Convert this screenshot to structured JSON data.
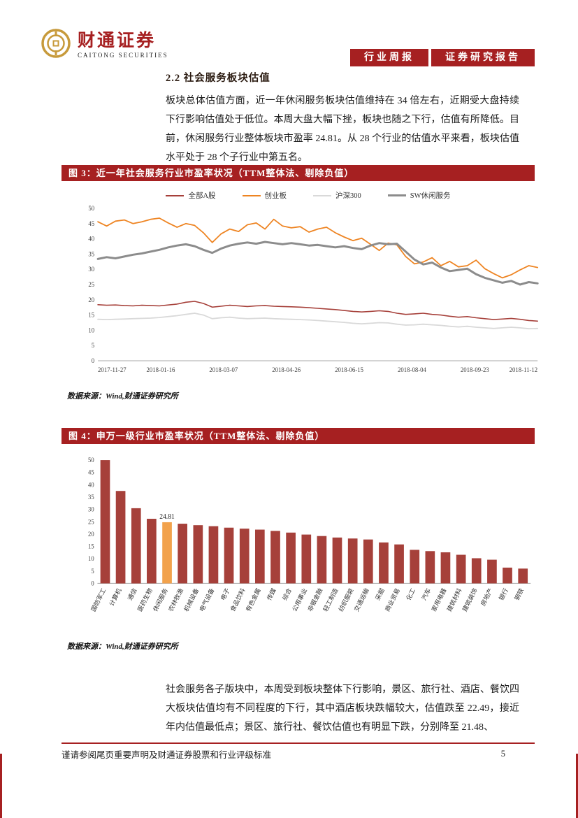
{
  "page": {
    "header": {
      "brand_cn": "财通证券",
      "brand_en": "CAITONG SECURITIES",
      "badge_left": "行业周报",
      "badge_right": "证券研究报告"
    },
    "section": {
      "title": "2.2 社会服务板块估值"
    },
    "paragraphs": {
      "p1": "板块总体估值方面，近一年休闲服务板块估值维持在 34 倍左右，近期受大盘持续下行影响估值处于低位。本周大盘大幅下挫，板块也随之下行，估值有所降低。目前，休闲服务行业整体板块市盈率 24.81。从 28 个行业的估值水平来看，板块估值水平处于 28 个子行业中第五名。",
      "p2": "社会服务各子版块中，本周受到板块整体下行影响，景区、旅行社、酒店、餐饮四大板块估值均有不同程度的下行，其中酒店板块跌幅较大，估值跌至 22.49，接近年内估值最低点；景区、旅行社、餐饮估值也有明显下跌，分别降至 21.48、"
    },
    "figure3": {
      "banner": "图 3：近一年社会服务行业市盈率状况（TTM整体法、剔除负值）",
      "source": "数据来源：Wind,财通证券研究所"
    },
    "figure4": {
      "banner": "图 4：申万一级行业市盈率状况（TTM整体法、剔除负值）",
      "source": "数据来源：Wind,财通证券研究所"
    },
    "footer": {
      "disclaimer": "谨请参阅尾页重要声明及财通证券股票和行业评级标准",
      "page_number": "5"
    }
  },
  "colors": {
    "accent_red": "#A62021",
    "gold": "#C79A3B",
    "bar_maroon": "#A6403A",
    "highlight_orange": "#F2A24C"
  },
  "chart_data": [
    {
      "type": "line",
      "title": "近一年社会服务行业市盈率状况（TTM整体法、剔除负值）",
      "ylim": [
        0,
        50
      ],
      "ytick_step": 5,
      "grid": false,
      "legend_position": "top",
      "x_tick_labels": [
        "2017-11-27",
        "2018-01-16",
        "2018-03-07",
        "2018-04-26",
        "2018-06-15",
        "2018-08-04",
        "2018-09-23",
        "2018-11-12"
      ],
      "series": [
        {
          "name": "全部A股",
          "color": "#A6403A",
          "width": 1.6,
          "values": [
            18.4,
            18.2,
            18.3,
            18.1,
            18.0,
            18.2,
            18.1,
            18.0,
            18.3,
            18.6,
            19.2,
            19.5,
            18.8,
            17.6,
            17.9,
            18.2,
            18.0,
            17.8,
            18.0,
            18.1,
            17.9,
            17.8,
            17.7,
            17.6,
            17.4,
            17.2,
            17.0,
            16.8,
            16.5,
            16.2,
            16.0,
            16.2,
            16.4,
            16.2,
            15.6,
            15.2,
            15.4,
            15.6,
            15.2,
            15.0,
            14.6,
            14.3,
            14.5,
            14.1,
            13.8,
            13.5,
            13.7,
            13.9,
            13.6,
            13.2,
            13.0
          ]
        },
        {
          "name": "创业板",
          "color": "#EE8422",
          "width": 1.8,
          "values": [
            45.6,
            44.2,
            45.8,
            46.2,
            45.0,
            45.6,
            46.4,
            46.8,
            45.2,
            43.8,
            45.0,
            44.4,
            42.0,
            38.8,
            41.6,
            43.2,
            42.4,
            44.6,
            45.2,
            43.2,
            46.4,
            44.2,
            43.6,
            44.0,
            42.2,
            43.2,
            43.8,
            42.0,
            40.6,
            39.4,
            40.2,
            38.2,
            36.2,
            38.6,
            38.0,
            34.2,
            31.8,
            32.4,
            33.8,
            31.2,
            32.6,
            30.8,
            31.2,
            33.0,
            30.2,
            28.6,
            27.2,
            28.2,
            29.8,
            31.2,
            30.6
          ]
        },
        {
          "name": "沪深300",
          "color": "#D9D9D9",
          "width": 1.8,
          "values": [
            13.6,
            13.5,
            13.6,
            13.7,
            13.8,
            13.9,
            14.0,
            14.2,
            14.5,
            14.8,
            15.2,
            15.6,
            15.0,
            13.8,
            14.1,
            14.3,
            14.0,
            13.8,
            13.9,
            14.0,
            13.8,
            13.7,
            13.6,
            13.5,
            13.4,
            13.2,
            13.0,
            12.8,
            12.6,
            12.3,
            12.1,
            12.3,
            12.5,
            12.4,
            12.0,
            11.7,
            11.8,
            12.0,
            11.8,
            11.6,
            11.3,
            11.1,
            11.3,
            11.0,
            10.8,
            10.6,
            10.8,
            11.0,
            10.8,
            10.5,
            10.6
          ]
        },
        {
          "name": "SW休闲服务",
          "color": "#8C8C8C",
          "width": 3,
          "values": [
            33.4,
            34.0,
            33.6,
            34.2,
            34.8,
            35.2,
            35.8,
            36.4,
            37.2,
            37.8,
            38.2,
            37.6,
            36.4,
            35.4,
            36.8,
            37.8,
            38.4,
            38.8,
            38.4,
            39.0,
            38.6,
            38.2,
            38.6,
            38.2,
            37.8,
            38.0,
            37.6,
            37.2,
            37.6,
            37.0,
            36.6,
            37.8,
            38.6,
            38.2,
            38.4,
            35.8,
            33.2,
            31.6,
            32.2,
            30.6,
            29.4,
            29.8,
            30.2,
            28.4,
            27.2,
            26.4,
            25.6,
            26.2,
            25.0,
            25.8,
            25.4
          ]
        }
      ]
    },
    {
      "type": "bar",
      "title": "申万一级行业市盈率状况（TTM整体法、剔除负值）",
      "ylim": [
        0,
        50
      ],
      "ytick_step": 5,
      "grid": false,
      "bar_color": "#A6403A",
      "highlight": {
        "index": 4,
        "color": "#F2A24C",
        "label": "24.81"
      },
      "categories": [
        "国防军工",
        "计算机",
        "通信",
        "医药生物",
        "休闲服务",
        "农林牧渔",
        "机械设备",
        "电气设备",
        "电子",
        "食品饮料",
        "有色金属",
        "传媒",
        "综合",
        "公用事业",
        "非银金融",
        "轻工制造",
        "纺织服装",
        "交通运输",
        "采掘",
        "商业贸易",
        "化工",
        "汽车",
        "家用电器",
        "建筑材料",
        "建筑装饰",
        "房地产",
        "银行",
        "钢铁"
      ],
      "values": [
        50,
        37.5,
        30.5,
        26.2,
        24.81,
        24.2,
        23.6,
        23.2,
        22.6,
        22.2,
        21.8,
        21.3,
        20.6,
        19.8,
        19.2,
        18.6,
        18.2,
        17.8,
        16.6,
        15.8,
        13.6,
        13.1,
        12.6,
        11.6,
        10.2,
        9.6,
        6.4,
        6.0
      ]
    }
  ]
}
